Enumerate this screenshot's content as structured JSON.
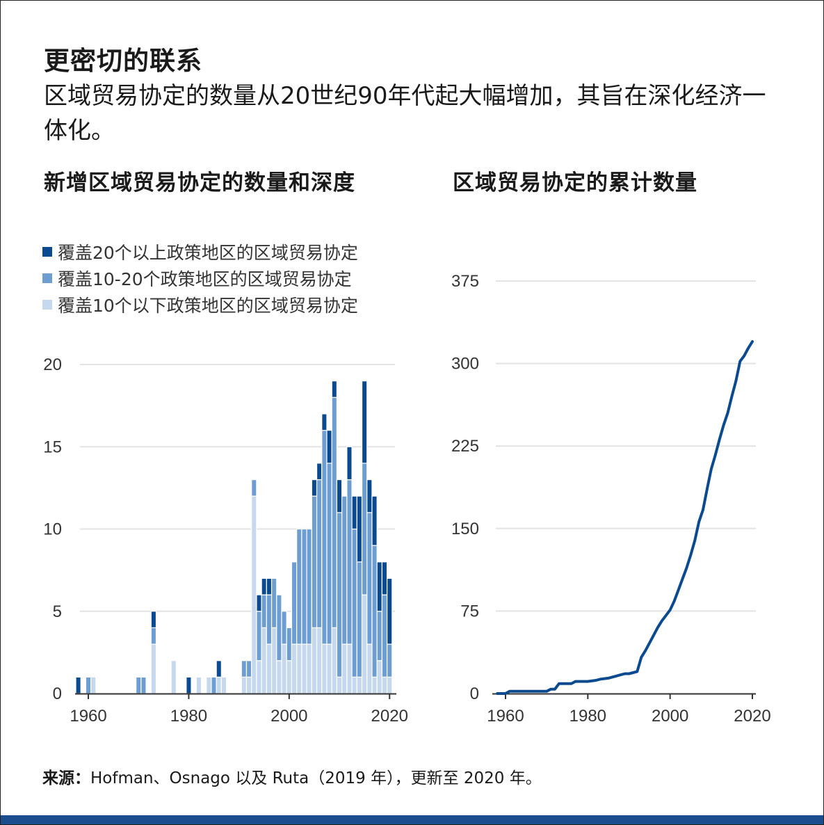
{
  "title": "更密切的联系",
  "subtitle": "区域贸易协定的数量从20世纪90年代起大幅增加，其旨在深化经济一体化。",
  "source_label": "来源：",
  "source_text": "Hofman、Osnago 以及 Ruta（2019 年），更新至 2020 年。",
  "colors": {
    "deep": "#0b4a8e",
    "mid": "#6e9ed1",
    "light": "#c6d8ee",
    "line": "#0b4a8e",
    "grid": "#e3e3e3"
  },
  "chart_data": [
    {
      "type": "bar",
      "title": "新增区域贸易协定的数量和深度",
      "legend": [
        "覆盖20个以上政策地区的区域贸易协定",
        "覆盖10-20个政策地区的区域贸易协定",
        "覆盖10个以下政策地区的区域贸易协定"
      ],
      "x": [
        1958,
        1959,
        1960,
        1961,
        1962,
        1963,
        1964,
        1965,
        1966,
        1967,
        1968,
        1969,
        1970,
        1971,
        1972,
        1973,
        1974,
        1975,
        1976,
        1977,
        1978,
        1979,
        1980,
        1981,
        1982,
        1983,
        1984,
        1985,
        1986,
        1987,
        1988,
        1989,
        1990,
        1991,
        1992,
        1993,
        1994,
        1995,
        1996,
        1997,
        1998,
        1999,
        2000,
        2001,
        2002,
        2003,
        2004,
        2005,
        2006,
        2007,
        2008,
        2009,
        2010,
        2011,
        2012,
        2013,
        2014,
        2015,
        2016,
        2017,
        2018,
        2019,
        2020
      ],
      "series": [
        {
          "name": "覆盖10个以下政策地区的区域贸易协定",
          "values": [
            0,
            0,
            0,
            1,
            0,
            0,
            0,
            0,
            0,
            0,
            0,
            0,
            0,
            0,
            0,
            3,
            0,
            0,
            0,
            2,
            0,
            0,
            0,
            0,
            1,
            0,
            1,
            0,
            1,
            1,
            0,
            0,
            0,
            1,
            1,
            12,
            2,
            4,
            3,
            4,
            2,
            3,
            2,
            3,
            3,
            3,
            3,
            4,
            4,
            3,
            3,
            4,
            1,
            3,
            3,
            1,
            1,
            6,
            3,
            1,
            2,
            1,
            1
          ]
        },
        {
          "name": "覆盖10-20个政策地区的区域贸易协定",
          "values": [
            0,
            0,
            1,
            0,
            0,
            0,
            0,
            0,
            0,
            0,
            0,
            0,
            1,
            1,
            0,
            1,
            0,
            0,
            0,
            0,
            0,
            0,
            0,
            0,
            0,
            0,
            0,
            1,
            0,
            0,
            0,
            0,
            0,
            1,
            1,
            1,
            3,
            2,
            3,
            3,
            4,
            2,
            2,
            5,
            7,
            7,
            7,
            8,
            9,
            13,
            11,
            14,
            10,
            9,
            10,
            9,
            7,
            8,
            8,
            8,
            3,
            5,
            2
          ]
        },
        {
          "name": "覆盖20个以上政策地区的区域贸易协定",
          "values": [
            1,
            0,
            0,
            0,
            0,
            0,
            0,
            0,
            0,
            0,
            0,
            0,
            0,
            0,
            0,
            1,
            0,
            0,
            0,
            0,
            0,
            0,
            1,
            0,
            0,
            0,
            0,
            0,
            1,
            0,
            0,
            0,
            0,
            0,
            0,
            0,
            1,
            1,
            1,
            0,
            0,
            0,
            0,
            0,
            0,
            0,
            0,
            1,
            1,
            1,
            2,
            1,
            2,
            0,
            2,
            2,
            4,
            5,
            2,
            3,
            3,
            2,
            4
          ]
        }
      ],
      "yticks": [
        0,
        5,
        10,
        15,
        20
      ],
      "xticks": [
        1960,
        1980,
        2000,
        2020
      ],
      "ylim": [
        0,
        20
      ]
    },
    {
      "type": "line",
      "title": "区域贸易协定的累计数量",
      "x": [
        1958,
        1960,
        1961,
        1965,
        1969,
        1970,
        1971,
        1972,
        1973,
        1976,
        1977,
        1980,
        1982,
        1983,
        1985,
        1986,
        1987,
        1988,
        1989,
        1990,
        1991,
        1992,
        1993,
        1994,
        1995,
        1996,
        1997,
        1998,
        1999,
        2000,
        2001,
        2002,
        2003,
        2004,
        2005,
        2006,
        2007,
        2008,
        2009,
        2010,
        2011,
        2012,
        2013,
        2014,
        2015,
        2016,
        2017,
        2018,
        2019,
        2020
      ],
      "y": [
        0,
        0,
        2,
        2,
        2,
        2,
        4,
        4,
        9,
        9,
        11,
        11,
        12,
        13,
        14,
        15,
        16,
        17,
        18,
        18,
        19,
        20,
        33,
        39,
        46,
        53,
        60,
        66,
        71,
        76,
        84,
        94,
        104,
        114,
        126,
        139,
        156,
        167,
        186,
        204,
        217,
        231,
        244,
        255,
        270,
        284,
        302,
        307,
        314,
        320
      ],
      "yticks": [
        0,
        75,
        150,
        225,
        300,
        375
      ],
      "xticks": [
        1960,
        1980,
        2000,
        2020
      ],
      "ylim": [
        0,
        375
      ]
    }
  ]
}
